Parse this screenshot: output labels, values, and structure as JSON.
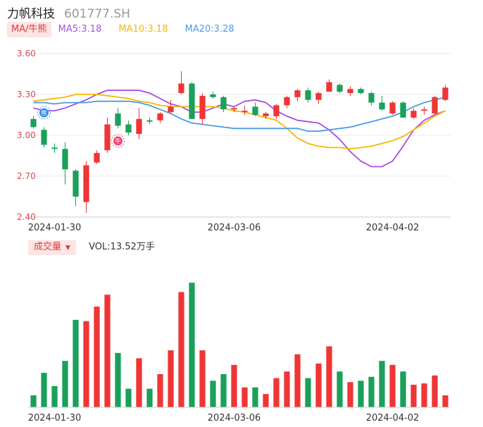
{
  "header": {
    "name": "力帆科技",
    "code": "601777.SH"
  },
  "ma_legend": {
    "selector_label": "MA/牛熊",
    "items": [
      {
        "label": "MA5:3.18",
        "color": "#a64ee6"
      },
      {
        "label": "MA10:3.18",
        "color": "#f5b800"
      },
      {
        "label": "MA20:3.28",
        "color": "#4a9be8"
      }
    ]
  },
  "volume_legend": {
    "selector_label": "成交量",
    "value_label": "VOL:13.52万手"
  },
  "colors": {
    "up": "#f03535",
    "down": "#1aa05a",
    "grid": "#e8e8e8"
  },
  "badges": {
    "bear": "熊",
    "bull": "牛"
  },
  "chart_data": {
    "type": "candlestick",
    "price_axis": {
      "ticks": [
        3.6,
        3.3,
        3.0,
        2.7,
        2.4
      ],
      "tick_labels": [
        "3.60",
        "3.30",
        "3.00",
        "2.70",
        "2.40"
      ],
      "ylim": [
        2.4,
        3.6
      ]
    },
    "date_labels": [
      {
        "label": "2024-01-30",
        "index": 2
      },
      {
        "label": "2024-03-06",
        "index": 19
      },
      {
        "label": "2024-04-02",
        "index": 34
      }
    ],
    "candles": [
      {
        "o": 3.12,
        "h": 3.14,
        "l": 3.05,
        "c": 3.06
      },
      {
        "o": 3.04,
        "h": 3.06,
        "l": 2.91,
        "c": 2.93
      },
      {
        "o": 2.91,
        "h": 2.94,
        "l": 2.87,
        "c": 2.9
      },
      {
        "o": 2.9,
        "h": 2.95,
        "l": 2.64,
        "c": 2.75
      },
      {
        "o": 2.74,
        "h": 2.75,
        "l": 2.48,
        "c": 2.55
      },
      {
        "o": 2.51,
        "h": 2.81,
        "l": 2.43,
        "c": 2.78
      },
      {
        "o": 2.8,
        "h": 2.89,
        "l": 2.79,
        "c": 2.87
      },
      {
        "o": 2.89,
        "h": 3.13,
        "l": 2.87,
        "c": 3.08
      },
      {
        "o": 3.16,
        "h": 3.2,
        "l": 3.05,
        "c": 3.07
      },
      {
        "o": 3.08,
        "h": 3.11,
        "l": 3.0,
        "c": 3.02
      },
      {
        "o": 3.01,
        "h": 3.2,
        "l": 2.97,
        "c": 3.12
      },
      {
        "o": 3.11,
        "h": 3.13,
        "l": 3.08,
        "c": 3.1
      },
      {
        "o": 3.11,
        "h": 3.17,
        "l": 3.09,
        "c": 3.16
      },
      {
        "o": 3.17,
        "h": 3.26,
        "l": 3.16,
        "c": 3.21
      },
      {
        "o": 3.31,
        "h": 3.47,
        "l": 3.3,
        "c": 3.38
      },
      {
        "o": 3.38,
        "h": 3.39,
        "l": 3.12,
        "c": 3.12
      },
      {
        "o": 3.12,
        "h": 3.31,
        "l": 3.08,
        "c": 3.29
      },
      {
        "o": 3.3,
        "h": 3.32,
        "l": 3.27,
        "c": 3.28
      },
      {
        "o": 3.28,
        "h": 3.29,
        "l": 3.17,
        "c": 3.19
      },
      {
        "o": 3.19,
        "h": 3.21,
        "l": 3.17,
        "c": 3.2
      },
      {
        "o": 3.17,
        "h": 3.22,
        "l": 3.15,
        "c": 3.18
      },
      {
        "o": 3.21,
        "h": 3.24,
        "l": 3.14,
        "c": 3.15
      },
      {
        "o": 3.14,
        "h": 3.17,
        "l": 3.12,
        "c": 3.16
      },
      {
        "o": 3.14,
        "h": 3.23,
        "l": 3.12,
        "c": 3.22
      },
      {
        "o": 3.22,
        "h": 3.29,
        "l": 3.2,
        "c": 3.28
      },
      {
        "o": 3.28,
        "h": 3.34,
        "l": 3.25,
        "c": 3.33
      },
      {
        "o": 3.33,
        "h": 3.35,
        "l": 3.24,
        "c": 3.26
      },
      {
        "o": 3.26,
        "h": 3.32,
        "l": 3.23,
        "c": 3.31
      },
      {
        "o": 3.32,
        "h": 3.41,
        "l": 3.32,
        "c": 3.39
      },
      {
        "o": 3.37,
        "h": 3.38,
        "l": 3.31,
        "c": 3.32
      },
      {
        "o": 3.31,
        "h": 3.36,
        "l": 3.29,
        "c": 3.34
      },
      {
        "o": 3.34,
        "h": 3.35,
        "l": 3.3,
        "c": 3.31
      },
      {
        "o": 3.31,
        "h": 3.32,
        "l": 3.22,
        "c": 3.24
      },
      {
        "o": 3.24,
        "h": 3.29,
        "l": 3.18,
        "c": 3.19
      },
      {
        "o": 3.16,
        "h": 3.25,
        "l": 3.15,
        "c": 3.24
      },
      {
        "o": 3.24,
        "h": 3.25,
        "l": 3.13,
        "c": 3.13
      },
      {
        "o": 3.13,
        "h": 3.2,
        "l": 3.12,
        "c": 3.18
      },
      {
        "o": 3.18,
        "h": 3.21,
        "l": 3.15,
        "c": 3.19
      },
      {
        "o": 3.16,
        "h": 3.29,
        "l": 3.15,
        "c": 3.28
      },
      {
        "o": 3.26,
        "h": 3.37,
        "l": 3.25,
        "c": 3.35
      }
    ],
    "volumes": [
      9,
      26,
      16,
      35,
      66,
      65,
      76,
      85,
      41,
      14,
      37,
      14,
      25,
      43,
      87,
      94,
      43,
      20,
      25,
      32,
      15,
      15,
      10,
      22,
      27,
      40,
      22,
      33,
      46,
      27,
      19,
      20,
      23,
      35,
      32,
      27,
      17,
      18,
      24,
      9
    ],
    "ma_series": [
      {
        "name": "MA5",
        "color": "#a64ee6",
        "values": [
          3.2,
          3.18,
          3.18,
          3.2,
          3.23,
          3.26,
          3.3,
          3.33,
          3.33,
          3.33,
          3.33,
          3.31,
          3.27,
          3.23,
          3.21,
          3.17,
          3.17,
          3.2,
          3.23,
          3.21,
          3.25,
          3.26,
          3.24,
          3.18,
          3.14,
          3.11,
          3.1,
          3.09,
          3.04,
          2.97,
          2.88,
          2.81,
          2.77,
          2.77,
          2.81,
          2.92,
          3.04,
          3.11,
          3.15,
          3.18
        ]
      },
      {
        "name": "MA10",
        "color": "#f5b800",
        "values": [
          3.25,
          3.26,
          3.27,
          3.28,
          3.3,
          3.3,
          3.3,
          3.29,
          3.28,
          3.27,
          3.25,
          3.24,
          3.22,
          3.21,
          3.21,
          3.21,
          3.21,
          3.21,
          3.2,
          3.18,
          3.17,
          3.15,
          3.13,
          3.11,
          3.05,
          2.98,
          2.94,
          2.92,
          2.91,
          2.91,
          2.9,
          2.91,
          2.92,
          2.94,
          2.96,
          2.99,
          3.04,
          3.09,
          3.14,
          3.18
        ]
      },
      {
        "name": "MA20",
        "color": "#4a9be8",
        "values": [
          3.24,
          3.24,
          3.23,
          3.24,
          3.24,
          3.24,
          3.25,
          3.25,
          3.25,
          3.25,
          3.24,
          3.22,
          3.19,
          3.16,
          3.12,
          3.09,
          3.08,
          3.07,
          3.06,
          3.05,
          3.05,
          3.05,
          3.05,
          3.05,
          3.05,
          3.05,
          3.03,
          3.03,
          3.04,
          3.05,
          3.06,
          3.08,
          3.1,
          3.12,
          3.14,
          3.17,
          3.21,
          3.24,
          3.26,
          3.28
        ]
      }
    ]
  }
}
